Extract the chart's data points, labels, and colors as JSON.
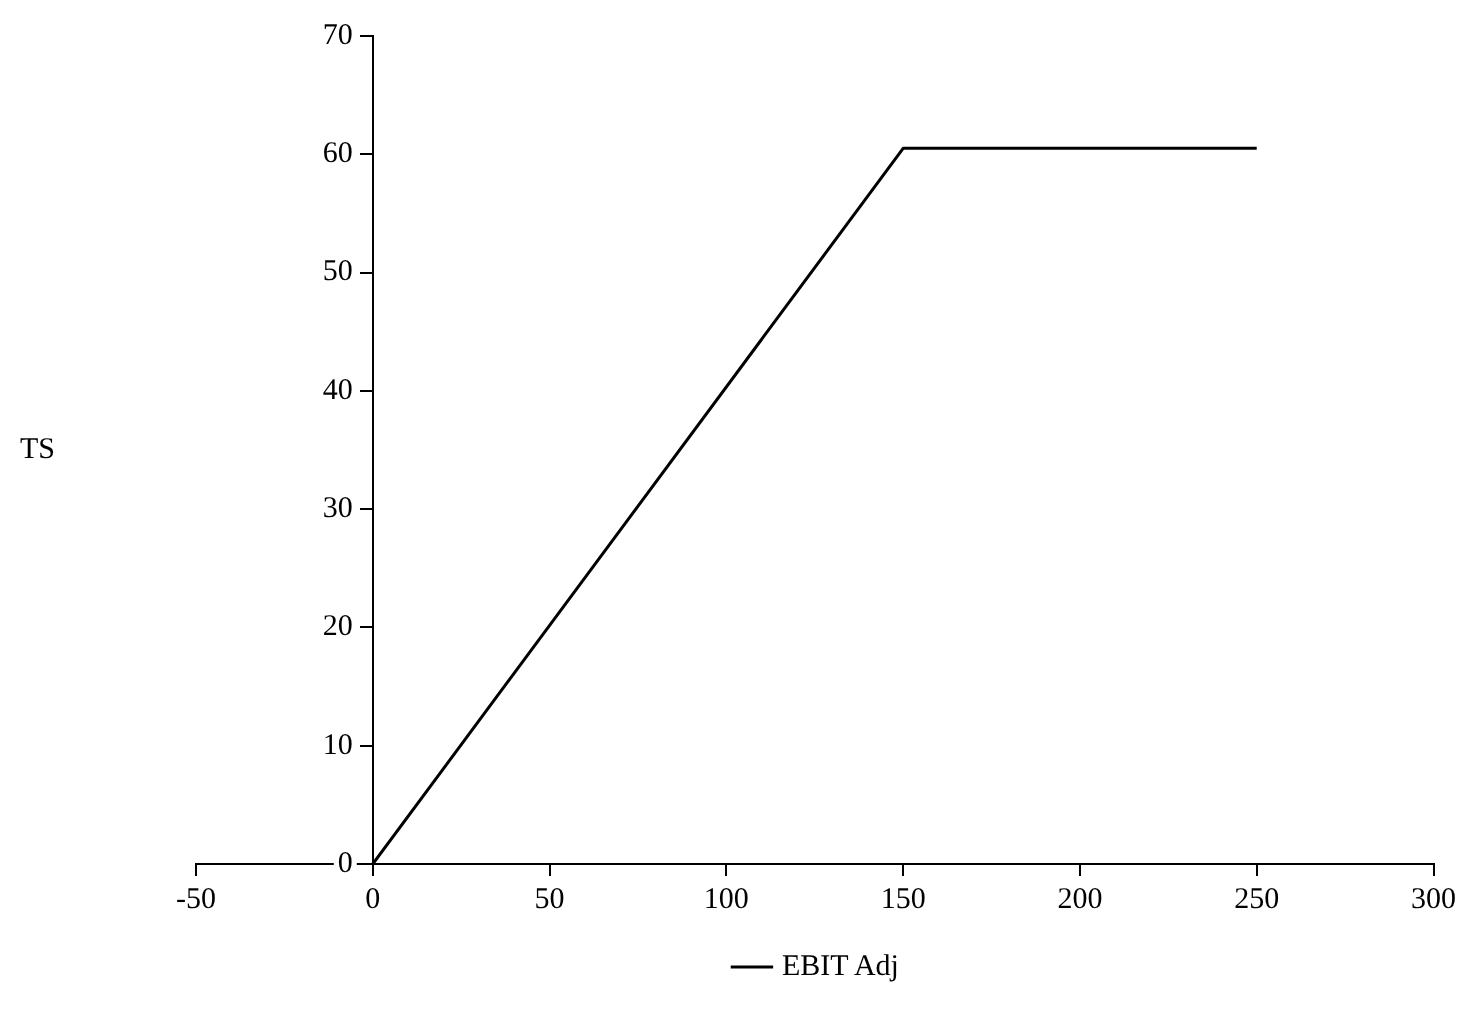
{
  "chart_data": {
    "type": "line",
    "ylabel": "TS",
    "x": [
      0,
      150,
      250
    ],
    "series": [
      {
        "name": "EBIT Adj",
        "color": "#000000",
        "values": [
          0,
          60.5,
          60.5
        ]
      }
    ],
    "xlim": [
      -50,
      300
    ],
    "xticks": [
      -50,
      0,
      50,
      100,
      150,
      200,
      250,
      300
    ],
    "ylim": [
      0,
      70
    ],
    "yticks": [
      0,
      10,
      20,
      30,
      40,
      50,
      60,
      70
    ],
    "grid": false,
    "legend": "bottom",
    "marker": "none",
    "line_style": "solid"
  }
}
